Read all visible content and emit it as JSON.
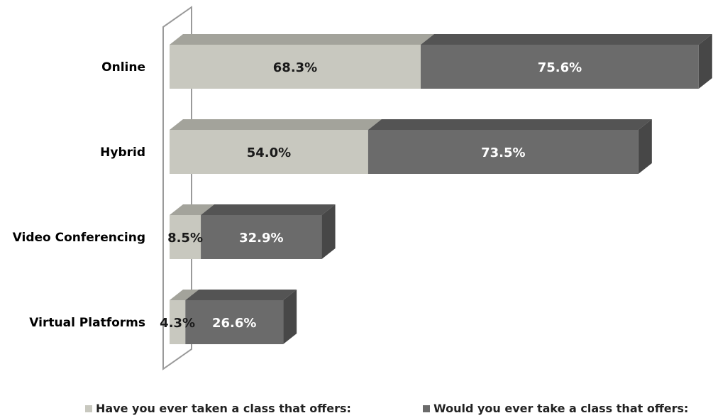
{
  "chart_data": {
    "type": "bar",
    "orientation": "horizontal",
    "stacked": true,
    "style": "3d",
    "categories": [
      "Online",
      "Hybrid",
      "Video Conferencing",
      "Virtual Platforms"
    ],
    "series": [
      {
        "name": "Have you ever taken a class that offers:",
        "values": [
          68.3,
          54.0,
          8.5,
          4.3
        ],
        "labels": [
          "68.3%",
          "54.0%",
          "8.5%",
          "4.3%"
        ],
        "color": "#c8c8bf"
      },
      {
        "name": "Would you ever take a class that offers:",
        "values": [
          75.6,
          73.5,
          32.9,
          26.6
        ],
        "labels": [
          "75.6%",
          "73.5%",
          "32.9%",
          "26.6%"
        ],
        "color": "#6b6b6b"
      }
    ],
    "legend": "bottom",
    "grid": false
  },
  "colors": {
    "series1_front": "#c8c8bf",
    "series1_top": "#a3a39b",
    "series2_front": "#6b6b6b",
    "series2_top": "#545454",
    "series2_side": "#474747",
    "wall": "#9a9a9a",
    "label_light": "#ffffff",
    "label_dark": "#1a1a1a"
  }
}
